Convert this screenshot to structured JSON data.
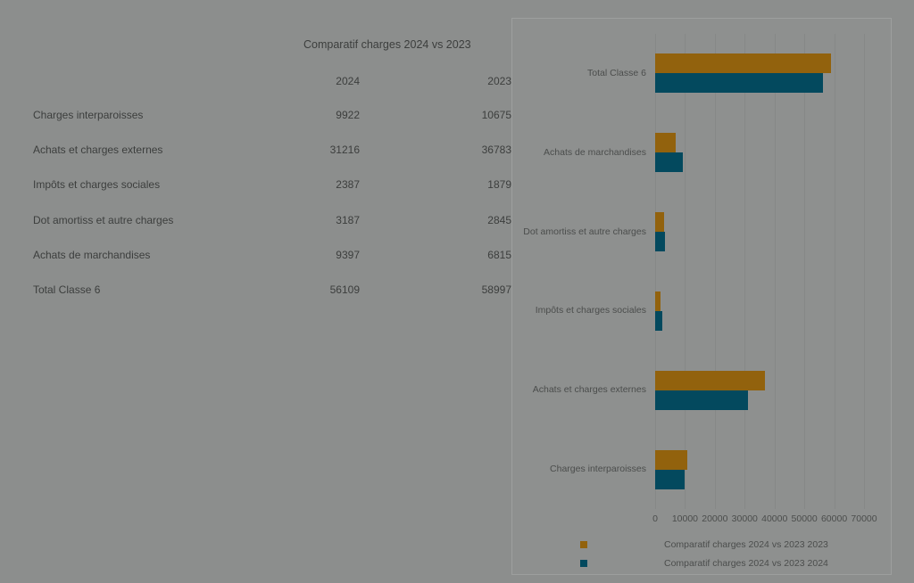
{
  "page": {
    "background": "#8c8e8d"
  },
  "table": {
    "title": "Comparatif charges 2024 vs 2023",
    "columns": [
      "2024",
      "2023"
    ],
    "rows": [
      {
        "label": "Charges interparoisses",
        "y2024": "9922",
        "y2023": "10675"
      },
      {
        "label": "Achats et charges externes",
        "y2024": "31216",
        "y2023": "36783"
      },
      {
        "label": "Impôts et charges sociales",
        "y2024": "2387",
        "y2023": "1879"
      },
      {
        "label": "Dot amortiss et autre charges",
        "y2024": "3187",
        "y2023": "2845"
      },
      {
        "label": "Achats de marchandises",
        "y2024": "9397",
        "y2023": "6815"
      },
      {
        "label": "Total Classe 6",
        "y2024": "56109",
        "y2023": "58997"
      }
    ]
  },
  "chart_data": {
    "type": "bar",
    "orientation": "horizontal",
    "categories": [
      "Total Classe 6",
      "Achats de marchandises",
      "Dot amortiss et autre charges",
      "Impôts et charges sociales",
      "Achats et charges externes",
      "Charges interparoisses"
    ],
    "series": [
      {
        "name": "Comparatif charges 2024 vs 2023 2023",
        "color": "#92620d",
        "values": [
          58997,
          6815,
          2845,
          1879,
          36783,
          10675
        ]
      },
      {
        "name": "Comparatif charges 2024 vs 2023 2024",
        "color": "#03495e",
        "values": [
          56109,
          9397,
          3187,
          2387,
          31216,
          9922
        ]
      }
    ],
    "xlim": [
      0,
      70000
    ],
    "x_ticks": [
      0,
      10000,
      20000,
      30000,
      40000,
      50000,
      60000,
      70000
    ],
    "grid": true,
    "legend_position": "bottom"
  }
}
